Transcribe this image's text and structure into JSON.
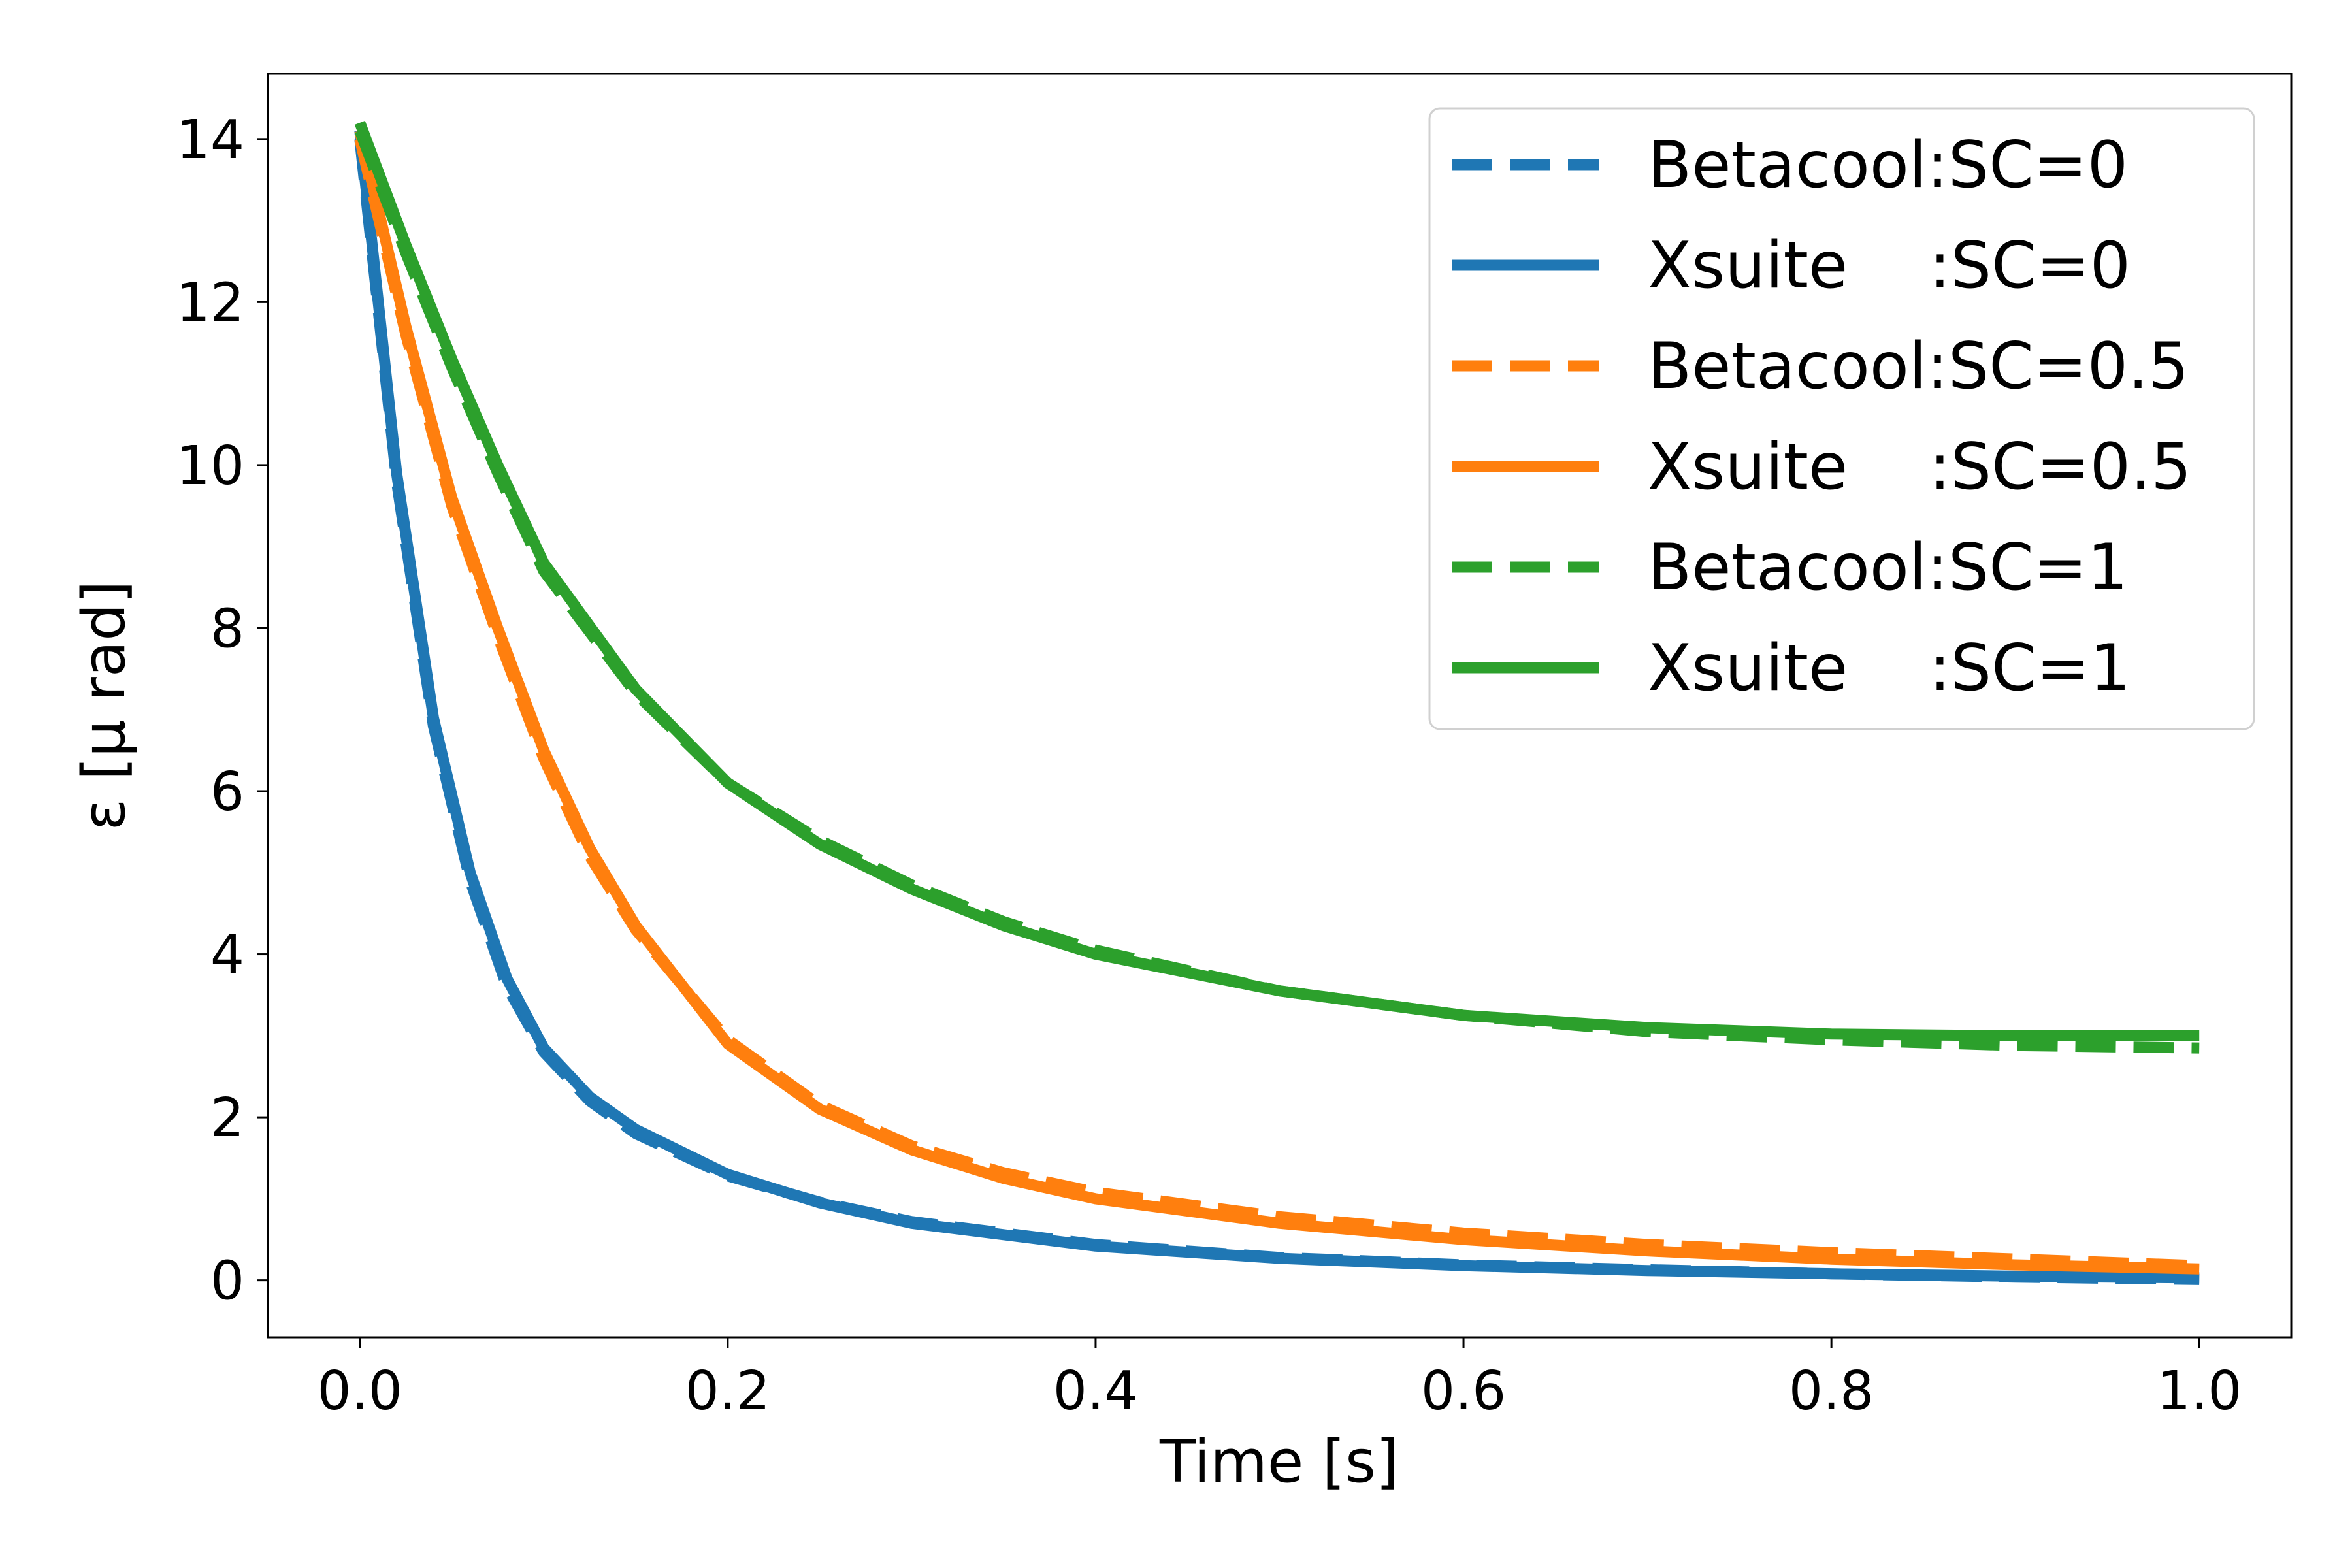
{
  "chart_data": {
    "type": "line",
    "title": "",
    "xlabel": "Time [s]",
    "ylabel": "ε [μ rad]",
    "xlim": [
      -0.05,
      1.05
    ],
    "ylim": [
      -0.7,
      14.8
    ],
    "xticks": [
      0.0,
      0.2,
      0.4,
      0.6,
      0.8,
      1.0
    ],
    "xtick_labels": [
      "0.0",
      "0.2",
      "0.4",
      "0.6",
      "0.8",
      "1.0"
    ],
    "yticks": [
      0,
      2,
      4,
      6,
      8,
      10,
      12,
      14
    ],
    "ytick_labels": [
      "0",
      "2",
      "4",
      "6",
      "8",
      "10",
      "12",
      "14"
    ],
    "grid": false,
    "legend_position": "top-right",
    "series": [
      {
        "name": "Betacool:SC=0",
        "color": "#1f77b4",
        "style": "dashed",
        "x": [
          0.0,
          0.02,
          0.04,
          0.06,
          0.08,
          0.1,
          0.125,
          0.15,
          0.2,
          0.25,
          0.3,
          0.4,
          0.5,
          0.6,
          0.7,
          0.8,
          0.9,
          1.0
        ],
        "y": [
          14.0,
          9.8,
          6.8,
          4.9,
          3.6,
          2.8,
          2.2,
          1.8,
          1.28,
          0.96,
          0.72,
          0.44,
          0.28,
          0.19,
          0.13,
          0.08,
          0.04,
          0.01
        ]
      },
      {
        "name": "Xsuite    :SC=0",
        "color": "#1f77b4",
        "style": "solid",
        "x": [
          0.0,
          0.02,
          0.04,
          0.06,
          0.08,
          0.1,
          0.125,
          0.15,
          0.2,
          0.25,
          0.3,
          0.4,
          0.5,
          0.6,
          0.7,
          0.8,
          0.9,
          1.0
        ],
        "y": [
          14.1,
          9.9,
          6.9,
          5.0,
          3.7,
          2.85,
          2.25,
          1.85,
          1.3,
          0.95,
          0.7,
          0.42,
          0.27,
          0.18,
          0.12,
          0.08,
          0.05,
          0.03
        ]
      },
      {
        "name": "Betacool:SC=0.5",
        "color": "#ff7f0e",
        "style": "dashed",
        "x": [
          0.0,
          0.025,
          0.05,
          0.075,
          0.1,
          0.125,
          0.15,
          0.2,
          0.25,
          0.3,
          0.35,
          0.4,
          0.5,
          0.6,
          0.7,
          0.8,
          0.9,
          1.0
        ],
        "y": [
          14.0,
          11.6,
          9.5,
          7.9,
          6.4,
          5.2,
          4.3,
          2.95,
          2.15,
          1.65,
          1.32,
          1.08,
          0.78,
          0.58,
          0.44,
          0.34,
          0.26,
          0.18
        ]
      },
      {
        "name": "Xsuite    :SC=0.5",
        "color": "#ff7f0e",
        "style": "solid",
        "x": [
          0.0,
          0.025,
          0.05,
          0.075,
          0.1,
          0.125,
          0.15,
          0.2,
          0.25,
          0.3,
          0.35,
          0.4,
          0.5,
          0.6,
          0.7,
          0.8,
          0.9,
          1.0
        ],
        "y": [
          14.1,
          11.7,
          9.6,
          8.0,
          6.5,
          5.3,
          4.35,
          2.9,
          2.1,
          1.6,
          1.25,
          1.0,
          0.7,
          0.5,
          0.36,
          0.26,
          0.19,
          0.14
        ]
      },
      {
        "name": "Betacool:SC=1",
        "color": "#2ca02c",
        "style": "dashed",
        "x": [
          0.0,
          0.025,
          0.05,
          0.075,
          0.1,
          0.15,
          0.2,
          0.25,
          0.3,
          0.35,
          0.4,
          0.5,
          0.6,
          0.7,
          0.8,
          0.9,
          1.0
        ],
        "y": [
          14.1,
          12.6,
          11.2,
          9.9,
          8.7,
          7.2,
          6.1,
          5.4,
          4.85,
          4.4,
          4.05,
          3.55,
          3.25,
          3.05,
          2.95,
          2.88,
          2.85
        ]
      },
      {
        "name": "Xsuite    :SC=1",
        "color": "#2ca02c",
        "style": "solid",
        "x": [
          0.0,
          0.025,
          0.05,
          0.075,
          0.1,
          0.15,
          0.2,
          0.25,
          0.3,
          0.35,
          0.4,
          0.5,
          0.6,
          0.7,
          0.8,
          0.9,
          1.0
        ],
        "y": [
          14.2,
          12.7,
          11.3,
          10.0,
          8.8,
          7.25,
          6.1,
          5.35,
          4.8,
          4.35,
          4.0,
          3.55,
          3.25,
          3.1,
          3.02,
          3.0,
          3.0
        ]
      }
    ]
  }
}
